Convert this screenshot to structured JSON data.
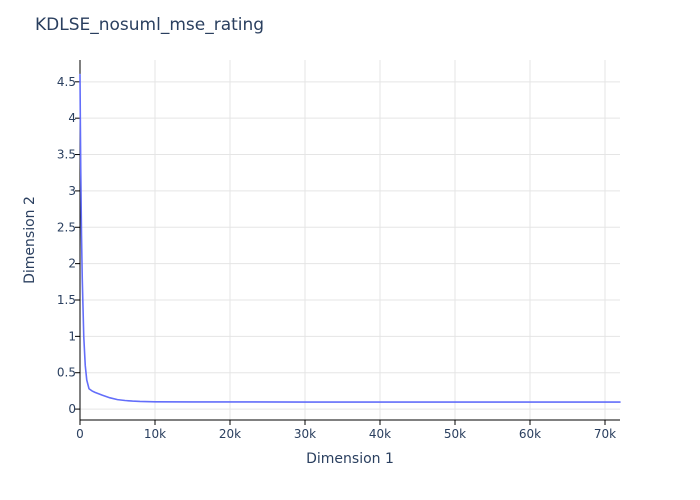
{
  "chart_data": {
    "type": "line",
    "title": "KDLSE_nosuml_mse_rating",
    "xlabel": "Dimension 1",
    "ylabel": "Dimension 2",
    "xlim": [
      0,
      72000
    ],
    "ylim": [
      -0.15,
      4.8
    ],
    "grid": true,
    "line_color": "#636efa",
    "x_ticks": [
      {
        "value": 0,
        "label": "0"
      },
      {
        "value": 10000,
        "label": "10k"
      },
      {
        "value": 20000,
        "label": "20k"
      },
      {
        "value": 30000,
        "label": "30k"
      },
      {
        "value": 40000,
        "label": "40k"
      },
      {
        "value": 50000,
        "label": "50k"
      },
      {
        "value": 60000,
        "label": "60k"
      },
      {
        "value": 70000,
        "label": "70k"
      }
    ],
    "y_ticks": [
      {
        "value": 0,
        "label": "0"
      },
      {
        "value": 0.5,
        "label": "0.5"
      },
      {
        "value": 1,
        "label": "1"
      },
      {
        "value": 1.5,
        "label": "1.5"
      },
      {
        "value": 2,
        "label": "2"
      },
      {
        "value": 2.5,
        "label": "2.5"
      },
      {
        "value": 3,
        "label": "3"
      },
      {
        "value": 3.5,
        "label": "3.5"
      },
      {
        "value": 4,
        "label": "4"
      },
      {
        "value": 4.5,
        "label": "4.5"
      }
    ],
    "series": [
      {
        "x": [
          0,
          50,
          100,
          200,
          300,
          500,
          700,
          900,
          1200,
          1600,
          2000,
          3000,
          4000,
          5000,
          6000,
          7000,
          8000,
          10000,
          15000,
          20000,
          30000,
          40000,
          50000,
          60000,
          72000
        ],
        "y": [
          4.6,
          3.9,
          3.3,
          2.4,
          1.8,
          1.0,
          0.6,
          0.4,
          0.28,
          0.25,
          0.23,
          0.19,
          0.155,
          0.13,
          0.118,
          0.11,
          0.105,
          0.1,
          0.098,
          0.098,
          0.097,
          0.097,
          0.097,
          0.097,
          0.097
        ]
      }
    ]
  }
}
